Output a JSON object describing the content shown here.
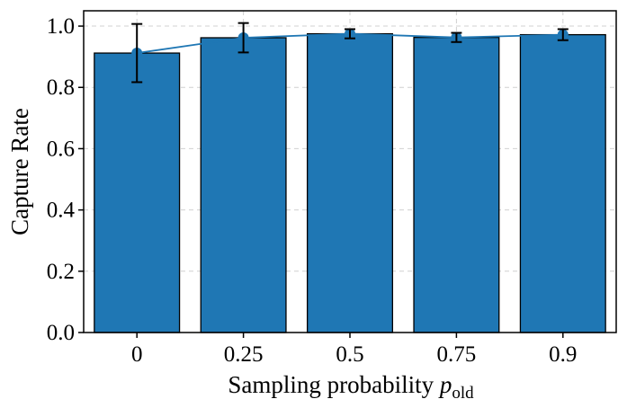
{
  "chart_data": {
    "type": "bar",
    "categories": [
      "0",
      "0.25",
      "0.5",
      "0.75",
      "0.9"
    ],
    "values": [
      0.912,
      0.962,
      0.975,
      0.963,
      0.972
    ],
    "error": [
      0.095,
      0.048,
      0.015,
      0.015,
      0.018
    ],
    "line_values": [
      0.912,
      0.962,
      0.975,
      0.963,
      0.972
    ],
    "xlabel": {
      "main": "Sampling probability ",
      "var": "p",
      "sub": "old"
    },
    "ylabel": "Capture Rate",
    "ylim": [
      0,
      1.05
    ],
    "yticks": [
      "0.0",
      "0.2",
      "0.4",
      "0.6",
      "0.8",
      "1.0"
    ],
    "grid": true,
    "colors": {
      "bar": "#1f77b4",
      "bar_edge": "#000000",
      "line": "#1f77b4",
      "error": "#000000",
      "grid": "#d0d0d0"
    }
  }
}
